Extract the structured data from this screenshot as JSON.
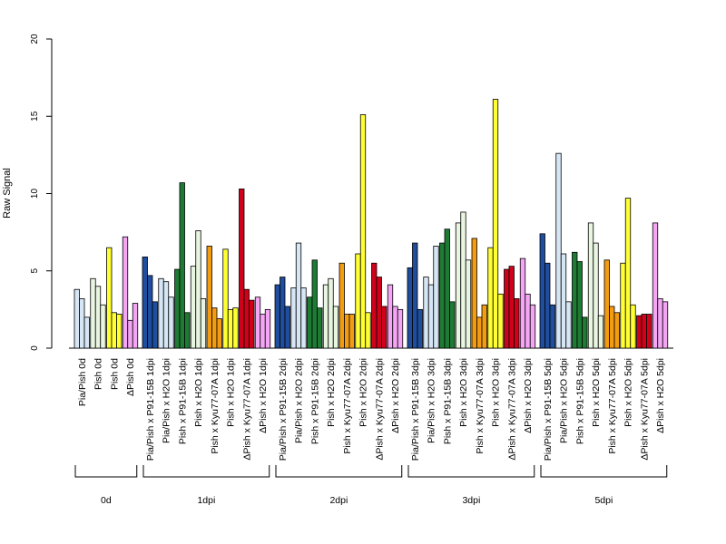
{
  "chart_data": {
    "type": "bar",
    "ylabel": "Raw Signal",
    "ylim": [
      0,
      20
    ],
    "yticks": [
      0,
      5,
      10,
      15,
      20
    ],
    "grid": false,
    "groups": [
      {
        "label": "0d",
        "categories": [
          {
            "label": "Pia/Pish 0d",
            "color": "#d6e6f5",
            "values": [
              3.8,
              3.2,
              2.0
            ]
          },
          {
            "label": "Pish 0d",
            "color": "#e8f5e0",
            "values": [
              4.5,
              4.0,
              2.8
            ]
          },
          {
            "label": "Pish 0d",
            "color": "#ffff33",
            "values": [
              6.5,
              2.3,
              2.2
            ]
          },
          {
            "label": "ΔPish 0d",
            "color": "#f4a6f4",
            "values": [
              7.2,
              1.8,
              2.9
            ]
          }
        ]
      },
      {
        "label": "1dpi",
        "categories": [
          {
            "label": "Pia/Pish x P91-15B 1dpi",
            "color": "#1f4e9e",
            "values": [
              5.9,
              4.7,
              3.0
            ]
          },
          {
            "label": "Pia/Pish x H2O 1dpi",
            "color": "#d6e6f5",
            "values": [
              4.5,
              4.3,
              3.3
            ]
          },
          {
            "label": "Pish x P91-15B 1dpi",
            "color": "#1e7b34",
            "values": [
              5.1,
              10.7,
              2.3
            ]
          },
          {
            "label": "Pish x H2O 1dpi",
            "color": "#e8f5e0",
            "values": [
              5.3,
              7.6,
              3.2
            ]
          },
          {
            "label": "Pish x Kyu77-07A 1dpi",
            "color": "#f39c12",
            "values": [
              6.6,
              2.6,
              1.9
            ]
          },
          {
            "label": "Pish x H2O 1dpi",
            "color": "#ffff33",
            "values": [
              6.4,
              2.5,
              2.6
            ]
          },
          {
            "label": "ΔPish x Kyu77-07A 1dpi",
            "color": "#d0021b",
            "values": [
              10.3,
              3.8,
              3.1
            ]
          },
          {
            "label": "ΔPish x H2O 1dpi",
            "color": "#f4a6f4",
            "values": [
              3.3,
              2.2,
              2.5
            ]
          }
        ]
      },
      {
        "label": "2dpi",
        "categories": [
          {
            "label": "Pia/Pish x P91-15B 2dpi",
            "color": "#1f4e9e",
            "values": [
              4.1,
              4.6,
              2.7
            ]
          },
          {
            "label": "Pia/Pish x H2O 2dpi",
            "color": "#d6e6f5",
            "values": [
              3.9,
              6.8,
              3.9
            ]
          },
          {
            "label": "Pish x P91-15B 2dpi",
            "color": "#1e7b34",
            "values": [
              3.3,
              5.7,
              2.6
            ]
          },
          {
            "label": "Pish x H2O 2dpi",
            "color": "#e8f5e0",
            "values": [
              4.1,
              4.5,
              2.7
            ]
          },
          {
            "label": "Pish x Kyu77-07A 2dpi",
            "color": "#f39c12",
            "values": [
              5.5,
              2.2,
              2.2
            ]
          },
          {
            "label": "Pish x H2O 2dpi",
            "color": "#ffff33",
            "values": [
              6.1,
              15.1,
              2.3
            ]
          },
          {
            "label": "ΔPish x Kyu77-07A 2dpi",
            "color": "#d0021b",
            "values": [
              5.5,
              4.6,
              2.7
            ]
          },
          {
            "label": "ΔPish x H2O 2dpi",
            "color": "#f4a6f4",
            "values": [
              4.1,
              2.7,
              2.5
            ]
          }
        ]
      },
      {
        "label": "3dpi",
        "categories": [
          {
            "label": "Pia/Pish x P91-15B 3dpi",
            "color": "#1f4e9e",
            "values": [
              5.2,
              6.8,
              2.5
            ]
          },
          {
            "label": "Pia/Pish x H2O 3dpi",
            "color": "#d6e6f5",
            "values": [
              4.6,
              4.1,
              6.6
            ]
          },
          {
            "label": "Pish x P91-15B 3dpi",
            "color": "#1e7b34",
            "values": [
              6.8,
              7.7,
              3.0
            ]
          },
          {
            "label": "Pish x H2O 3dpi",
            "color": "#e8f5e0",
            "values": [
              8.1,
              8.8,
              5.7
            ]
          },
          {
            "label": "Pish x Kyu77-07A 3dpi",
            "color": "#f39c12",
            "values": [
              7.1,
              2.0,
              2.8
            ]
          },
          {
            "label": "Pish x H2O 3dpi",
            "color": "#ffff33",
            "values": [
              6.5,
              16.1,
              3.5
            ]
          },
          {
            "label": "ΔPish x Kyu77-07A 3dpi",
            "color": "#d0021b",
            "values": [
              5.1,
              5.3,
              3.2
            ]
          },
          {
            "label": "ΔPish x H2O 3dpi",
            "color": "#f4a6f4",
            "values": [
              5.8,
              3.5,
              2.8
            ]
          }
        ]
      },
      {
        "label": "5dpi",
        "categories": [
          {
            "label": "Pia/Pish x P91-15B 5dpi",
            "color": "#1f4e9e",
            "values": [
              7.4,
              5.5,
              2.8
            ]
          },
          {
            "label": "Pia/Pish x H2O 5dpi",
            "color": "#d6e6f5",
            "values": [
              12.6,
              6.1,
              3.0
            ]
          },
          {
            "label": "Pish x P91-15B 5dpi",
            "color": "#1e7b34",
            "values": [
              6.2,
              5.6,
              2.0
            ]
          },
          {
            "label": "Pish x H2O 5dpi",
            "color": "#e8f5e0",
            "values": [
              8.1,
              6.8,
              2.1
            ]
          },
          {
            "label": "Pish x Kyu77-07A 5dpi",
            "color": "#f39c12",
            "values": [
              5.7,
              2.7,
              2.3
            ]
          },
          {
            "label": "Pish x H2O 5dpi",
            "color": "#ffff33",
            "values": [
              5.5,
              9.7,
              2.8
            ]
          },
          {
            "label": "ΔPish x Kyu77-07A 5dpi",
            "color": "#d0021b",
            "values": [
              2.1,
              2.2,
              2.2
            ]
          },
          {
            "label": "ΔPish x H2O 5dpi",
            "color": "#f4a6f4",
            "values": [
              8.1,
              3.2,
              3.0
            ]
          }
        ]
      }
    ]
  }
}
